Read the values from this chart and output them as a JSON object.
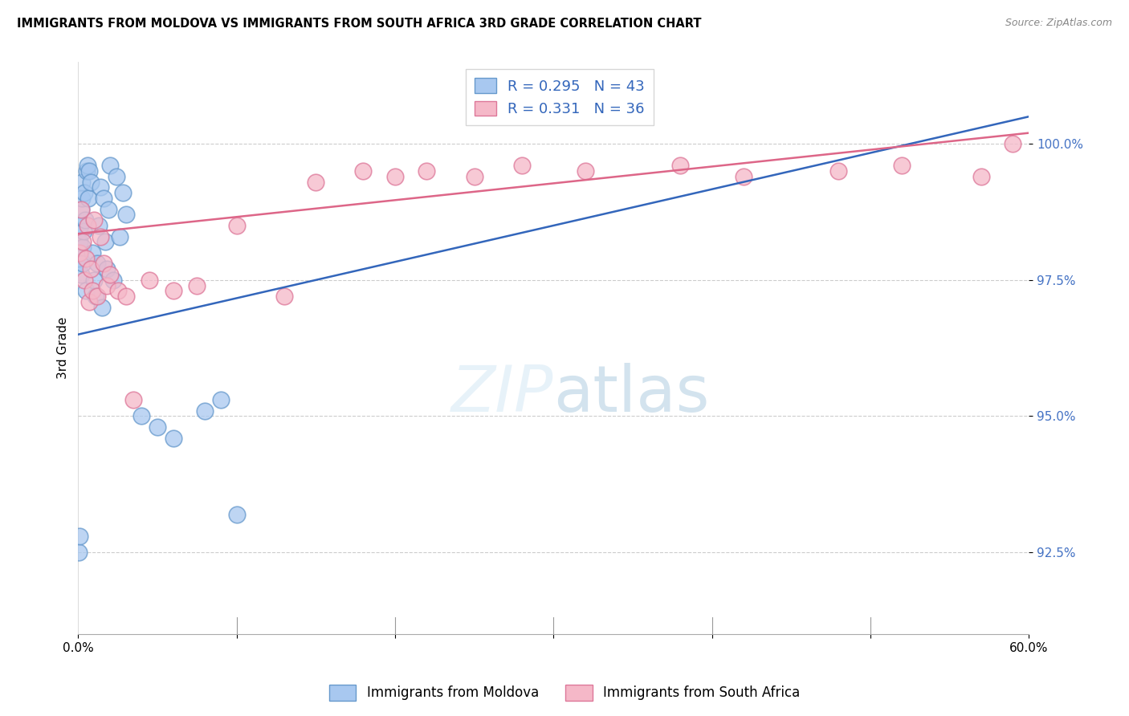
{
  "title": "IMMIGRANTS FROM MOLDOVA VS IMMIGRANTS FROM SOUTH AFRICA 3RD GRADE CORRELATION CHART",
  "source": "Source: ZipAtlas.com",
  "ylabel": "3rd Grade",
  "y_ticks": [
    92.5,
    95.0,
    97.5,
    100.0
  ],
  "y_tick_labels": [
    "92.5%",
    "95.0%",
    "97.5%",
    "100.0%"
  ],
  "xlim": [
    0.0,
    60.0
  ],
  "ylim": [
    91.0,
    101.5
  ],
  "moldova_color": "#a8c8f0",
  "moldova_edge_color": "#6699cc",
  "south_africa_color": "#f5b8c8",
  "south_africa_edge_color": "#dd7799",
  "moldova_line_color": "#3366bb",
  "south_africa_line_color": "#dd6688",
  "moldova_R": 0.295,
  "moldova_N": 43,
  "south_africa_R": 0.331,
  "south_africa_N": 36,
  "legend_label_moldova": "Immigrants from Moldova",
  "legend_label_south_africa": "Immigrants from South Africa",
  "moldova_x": [
    0.05,
    0.08,
    0.1,
    0.12,
    0.15,
    0.18,
    0.2,
    0.22,
    0.25,
    0.28,
    0.3,
    0.35,
    0.4,
    0.45,
    0.5,
    0.55,
    0.6,
    0.65,
    0.7,
    0.8,
    0.9,
    1.0,
    1.1,
    1.2,
    1.3,
    1.4,
    1.5,
    1.6,
    1.7,
    1.8,
    1.9,
    2.0,
    2.2,
    2.4,
    2.6,
    2.8,
    3.0,
    4.0,
    5.0,
    6.0,
    8.0,
    9.0,
    10.0
  ],
  "moldova_y": [
    92.5,
    92.8,
    98.2,
    97.9,
    98.5,
    97.6,
    98.8,
    99.0,
    99.3,
    97.8,
    98.1,
    98.4,
    99.1,
    98.6,
    97.3,
    99.5,
    99.6,
    99.0,
    99.5,
    99.3,
    98.0,
    97.5,
    97.2,
    97.8,
    98.5,
    99.2,
    97.0,
    99.0,
    98.2,
    97.7,
    98.8,
    99.6,
    97.5,
    99.4,
    98.3,
    99.1,
    98.7,
    95.0,
    94.8,
    94.6,
    95.1,
    95.3,
    93.2
  ],
  "south_africa_x": [
    0.1,
    0.2,
    0.3,
    0.4,
    0.5,
    0.6,
    0.7,
    0.8,
    0.9,
    1.0,
    1.2,
    1.4,
    1.6,
    1.8,
    2.0,
    2.5,
    3.0,
    3.5,
    4.5,
    6.0,
    7.5,
    10.0,
    13.0,
    15.0,
    18.0,
    20.0,
    22.0,
    25.0,
    28.0,
    32.0,
    38.0,
    42.0,
    48.0,
    52.0,
    57.0,
    59.0
  ],
  "south_africa_y": [
    98.0,
    98.8,
    98.2,
    97.5,
    97.9,
    98.5,
    97.1,
    97.7,
    97.3,
    98.6,
    97.2,
    98.3,
    97.8,
    97.4,
    97.6,
    97.3,
    97.2,
    95.3,
    97.5,
    97.3,
    97.4,
    98.5,
    97.2,
    99.3,
    99.5,
    99.4,
    99.5,
    99.4,
    99.6,
    99.5,
    99.6,
    99.4,
    99.5,
    99.6,
    99.4,
    100.0
  ]
}
